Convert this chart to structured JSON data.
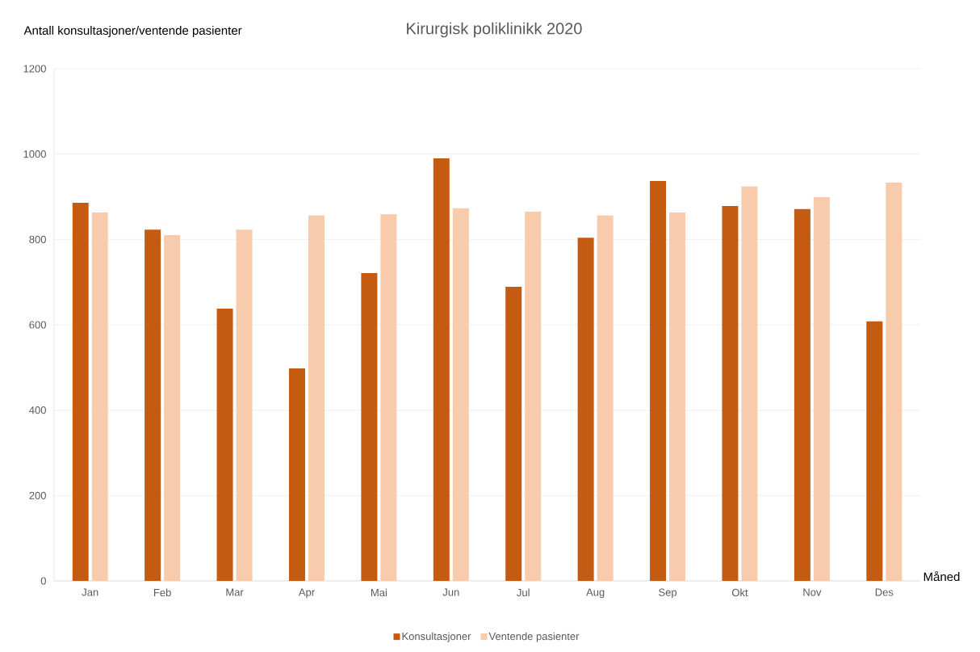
{
  "chart_data": {
    "type": "bar",
    "title": "Kirurgisk poliklinikk 2020",
    "ylabel": "Antall konsultasjoner/ventende pasienter",
    "xlabel": "Måned",
    "categories": [
      "Jan",
      "Feb",
      "Mar",
      "Apr",
      "Mai",
      "Jun",
      "Jul",
      "Aug",
      "Sep",
      "Okt",
      "Nov",
      "Des"
    ],
    "series": [
      {
        "name": "Konsultasjoner",
        "color": "#c55a11",
        "values": [
          886,
          823,
          638,
          498,
          721,
          990,
          689,
          804,
          937,
          878,
          871,
          608
        ]
      },
      {
        "name": "Ventende pasienter",
        "color": "#f8cbad",
        "values": [
          863,
          810,
          823,
          856,
          859,
          873,
          865,
          856,
          863,
          924,
          899,
          933
        ]
      }
    ],
    "ylim": [
      0,
      1200
    ],
    "yticks": [
      0,
      200,
      400,
      600,
      800,
      1000,
      1200
    ],
    "grid": "y",
    "legend": "bottom"
  }
}
